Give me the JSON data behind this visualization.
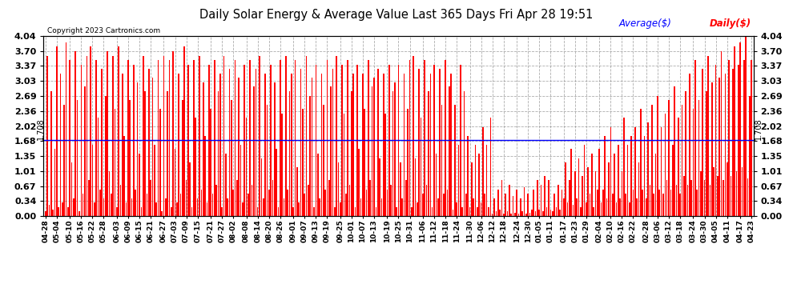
{
  "title": "Daily Solar Energy & Average Value Last 365 Days Fri Apr 28 19:51",
  "copyright": "Copyright 2023 Cartronics.com",
  "average_label": "Average($)",
  "daily_label": "Daily($)",
  "average_value": 1.708,
  "ylim": [
    0.0,
    4.04
  ],
  "yticks": [
    0.0,
    0.34,
    0.67,
    1.01,
    1.35,
    1.68,
    2.02,
    2.36,
    2.69,
    3.03,
    3.37,
    3.7,
    4.04
  ],
  "bar_color": "#ff0000",
  "avg_line_color": "#0000ff",
  "background_color": "#ffffff",
  "grid_color": "#999999",
  "title_color": "#000000",
  "copyright_color": "#000000",
  "avg_line_value_label": "1.708",
  "x_labels": [
    "04-28",
    "05-04",
    "05-10",
    "05-16",
    "05-22",
    "05-28",
    "06-03",
    "06-09",
    "06-15",
    "06-21",
    "06-27",
    "07-03",
    "07-09",
    "07-15",
    "07-21",
    "07-27",
    "08-02",
    "08-08",
    "08-14",
    "08-20",
    "08-26",
    "09-01",
    "09-07",
    "09-13",
    "09-19",
    "09-25",
    "10-01",
    "10-07",
    "10-13",
    "10-19",
    "10-25",
    "10-31",
    "11-06",
    "11-12",
    "11-18",
    "11-24",
    "11-30",
    "12-06",
    "12-12",
    "12-18",
    "12-24",
    "12-30",
    "01-05",
    "01-11",
    "01-17",
    "01-23",
    "01-29",
    "02-04",
    "02-10",
    "02-16",
    "02-22",
    "02-28",
    "03-06",
    "03-12",
    "03-18",
    "03-24",
    "03-30",
    "04-05",
    "04-11",
    "04-17",
    "04-23"
  ],
  "values": [
    0.1,
    3.6,
    0.25,
    2.8,
    0.15,
    1.5,
    3.8,
    0.2,
    3.2,
    0.3,
    2.5,
    3.9,
    0.2,
    3.5,
    1.2,
    0.4,
    3.7,
    2.6,
    0.1,
    3.4,
    0.5,
    2.9,
    3.6,
    0.8,
    3.8,
    1.6,
    0.3,
    3.5,
    2.2,
    0.6,
    3.3,
    0.4,
    2.7,
    3.7,
    1.0,
    0.5,
    3.6,
    2.4,
    0.2,
    3.8,
    0.7,
    3.2,
    1.8,
    0.3,
    3.5,
    2.6,
    0.4,
    3.4,
    0.6,
    3.0,
    1.4,
    0.2,
    3.6,
    2.8,
    0.5,
    3.3,
    0.8,
    3.1,
    1.6,
    0.3,
    3.5,
    2.4,
    0.1,
    3.6,
    0.4,
    2.8,
    3.5,
    0.2,
    3.7,
    1.5,
    0.3,
    3.2,
    0.5,
    2.6,
    3.8,
    0.8,
    3.4,
    1.2,
    0.2,
    3.5,
    2.2,
    0.4,
    3.6,
    0.6,
    3.0,
    1.8,
    0.3,
    3.4,
    2.4,
    0.5,
    3.5,
    0.7,
    2.8,
    3.2,
    0.2,
    3.6,
    1.4,
    0.4,
    3.3,
    2.6,
    0.6,
    3.5,
    0.8,
    3.1,
    1.6,
    0.3,
    3.4,
    2.2,
    0.5,
    3.5,
    0.7,
    2.9,
    3.3,
    0.2,
    3.6,
    1.3,
    0.4,
    3.2,
    2.5,
    0.6,
    3.4,
    0.8,
    3.0,
    1.5,
    0.2,
    3.5,
    2.3,
    0.4,
    3.6,
    0.6,
    2.8,
    3.2,
    0.2,
    3.5,
    1.1,
    0.3,
    3.3,
    2.4,
    0.5,
    3.6,
    0.7,
    2.7,
    3.1,
    0.2,
    3.4,
    1.4,
    0.4,
    3.2,
    2.5,
    0.6,
    3.5,
    0.8,
    2.9,
    3.3,
    0.2,
    3.6,
    1.2,
    0.3,
    3.4,
    2.3,
    0.5,
    3.5,
    0.7,
    2.8,
    3.2,
    0.2,
    3.4,
    1.5,
    0.4,
    3.2,
    2.4,
    0.6,
    3.5,
    0.8,
    2.9,
    3.1,
    0.2,
    3.3,
    1.3,
    0.4,
    3.2,
    2.3,
    0.6,
    3.4,
    0.7,
    2.8,
    3.0,
    0.2,
    3.4,
    1.2,
    0.4,
    3.2,
    0.8,
    2.4,
    3.5,
    0.2,
    3.6,
    1.3,
    0.3,
    3.3,
    2.2,
    0.5,
    3.5,
    0.7,
    2.8,
    3.2,
    0.2,
    3.4,
    1.4,
    0.4,
    3.3,
    2.5,
    0.5,
    3.5,
    0.6,
    2.9,
    3.2,
    0.15,
    2.5,
    0.3,
    1.6,
    3.4,
    0.2,
    2.8,
    0.5,
    1.8,
    0.2,
    1.2,
    0.4,
    1.6,
    0.2,
    1.4,
    0.3,
    2.0,
    0.5,
    1.6,
    0.2,
    2.2,
    0.05,
    0.4,
    0.1,
    0.6,
    0.15,
    0.8,
    0.05,
    0.5,
    0.1,
    0.7,
    0.05,
    0.45,
    0.08,
    0.6,
    0.05,
    0.4,
    0.1,
    0.65,
    0.05,
    0.5,
    0.08,
    0.15,
    0.6,
    0.1,
    0.8,
    0.15,
    0.7,
    0.1,
    0.9,
    0.2,
    0.8,
    0.15,
    0.1,
    0.5,
    0.2,
    0.7,
    0.15,
    0.6,
    0.4,
    1.2,
    0.3,
    0.8,
    1.5,
    0.25,
    1.0,
    0.4,
    1.3,
    0.2,
    0.9,
    1.6,
    0.3,
    1.1,
    0.5,
    1.4,
    0.2,
    1.0,
    0.6,
    1.5,
    0.3,
    0.6,
    1.8,
    0.4,
    1.2,
    2.0,
    0.5,
    1.4,
    0.3,
    1.6,
    0.4,
    1.0,
    2.2,
    0.5,
    1.6,
    0.3,
    1.8,
    0.6,
    2.0,
    0.4,
    1.2,
    2.4,
    0.6,
    1.8,
    0.4,
    2.1,
    0.7,
    2.5,
    0.5,
    1.4,
    2.7,
    0.6,
    2.0,
    0.5,
    2.3,
    0.8,
    2.6,
    0.6,
    1.6,
    2.9,
    0.7,
    2.2,
    0.5,
    2.5,
    0.9,
    2.8,
    0.7,
    3.2,
    0.8,
    2.4,
    3.5,
    0.6,
    2.6,
    1.0,
    3.3,
    0.8,
    2.8,
    3.6,
    0.7,
    3.0,
    1.1,
    3.4,
    0.9,
    3.1,
    3.7,
    0.8,
    3.2,
    1.2,
    3.5,
    0.9,
    3.3,
    3.8,
    1.0,
    3.4,
    3.9,
    1.1,
    3.5,
    4.04,
    0.85,
    2.7,
    3.5
  ]
}
